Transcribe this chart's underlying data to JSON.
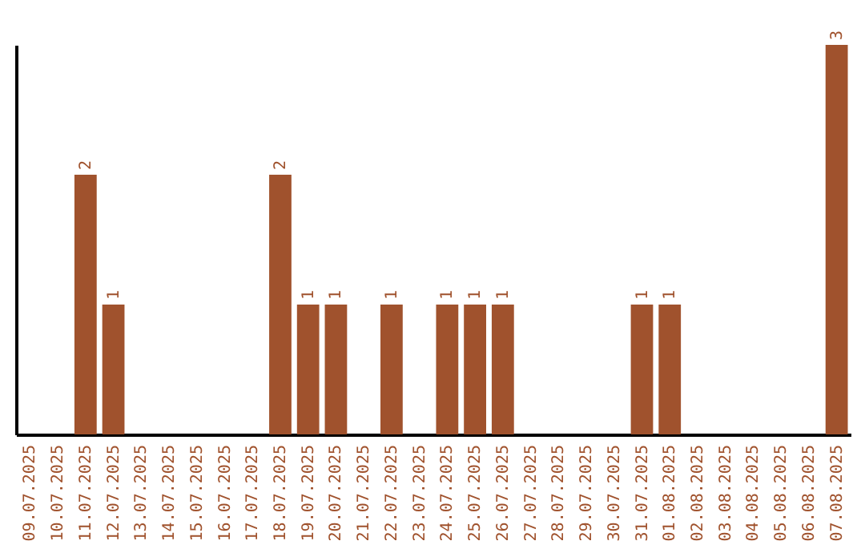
{
  "chart_data": {
    "type": "bar",
    "categories": [
      "09.07.2025",
      "10.07.2025",
      "11.07.2025",
      "12.07.2025",
      "13.07.2025",
      "14.07.2025",
      "15.07.2025",
      "16.07.2025",
      "17.07.2025",
      "18.07.2025",
      "19.07.2025",
      "20.07.2025",
      "21.07.2025",
      "22.07.2025",
      "23.07.2025",
      "24.07.2025",
      "25.07.2025",
      "26.07.2025",
      "27.07.2025",
      "28.07.2025",
      "29.07.2025",
      "30.07.2025",
      "31.07.2025",
      "01.08.2025",
      "02.08.2025",
      "03.08.2025",
      "04.08.2025",
      "05.08.2025",
      "06.08.2025",
      "07.08.2025"
    ],
    "values": [
      0,
      0,
      2,
      1,
      0,
      0,
      0,
      0,
      0,
      2,
      1,
      1,
      0,
      1,
      0,
      1,
      1,
      1,
      0,
      0,
      0,
      0,
      1,
      1,
      0,
      0,
      0,
      0,
      0,
      3
    ],
    "value_labels": [
      null,
      null,
      "2",
      "1",
      null,
      null,
      null,
      null,
      null,
      "2",
      "1",
      "1",
      null,
      "1",
      null,
      "1",
      "1",
      "1",
      null,
      null,
      null,
      null,
      "1",
      "1",
      null,
      null,
      null,
      null,
      null,
      "3"
    ],
    "color": "#a0522d",
    "ylim": [
      0,
      3
    ],
    "tick_labels": "x",
    "grid": false
  }
}
